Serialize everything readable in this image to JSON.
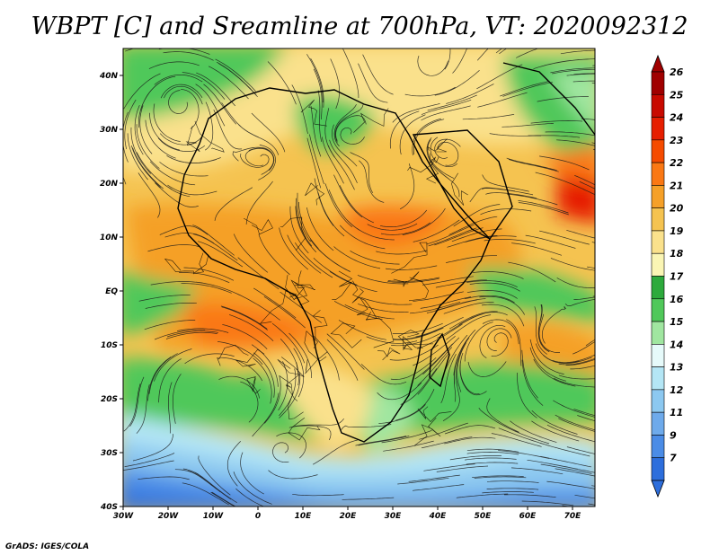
{
  "title": "WBPT [C] and Sreamline at 700hPa, VT: 2020092312",
  "credit": "GrADS: IGES/COLA",
  "map": {
    "lon_range": [
      -30,
      75
    ],
    "lat_range": [
      -40,
      45
    ],
    "lat_ticks": [
      {
        "value": 40,
        "label": "40N"
      },
      {
        "value": 30,
        "label": "30N"
      },
      {
        "value": 20,
        "label": "20N"
      },
      {
        "value": 10,
        "label": "10N"
      },
      {
        "value": 0,
        "label": "EQ"
      },
      {
        "value": -10,
        "label": "10S"
      },
      {
        "value": -20,
        "label": "20S"
      },
      {
        "value": -30,
        "label": "30S"
      },
      {
        "value": -40,
        "label": "40S"
      }
    ],
    "lon_ticks": [
      {
        "value": -30,
        "label": "30W"
      },
      {
        "value": -20,
        "label": "20W"
      },
      {
        "value": -10,
        "label": "10W"
      },
      {
        "value": 0,
        "label": "0"
      },
      {
        "value": 10,
        "label": "10E"
      },
      {
        "value": 20,
        "label": "20E"
      },
      {
        "value": 30,
        "label": "30E"
      },
      {
        "value": 40,
        "label": "40E"
      },
      {
        "value": 50,
        "label": "50E"
      },
      {
        "value": 60,
        "label": "60E"
      },
      {
        "value": 70,
        "label": "70E"
      }
    ]
  },
  "colorbar": {
    "levels": [
      {
        "label": "26",
        "color": "#a00000"
      },
      {
        "label": "25",
        "color": "#c80a00"
      },
      {
        "label": "24",
        "color": "#e61e00"
      },
      {
        "label": "23",
        "color": "#f54b00"
      },
      {
        "label": "22",
        "color": "#fa7814"
      },
      {
        "label": "21",
        "color": "#f5a028"
      },
      {
        "label": "20",
        "color": "#f5c350"
      },
      {
        "label": "19",
        "color": "#fae18c"
      },
      {
        "label": "18",
        "color": "#faf5b4"
      },
      {
        "label": "17",
        "color": "#2daa3c"
      },
      {
        "label": "16",
        "color": "#50c85a"
      },
      {
        "label": "15",
        "color": "#a0e6a0"
      },
      {
        "label": "14",
        "color": "#e6fafa"
      },
      {
        "label": "13",
        "color": "#b4e6f5"
      },
      {
        "label": "12",
        "color": "#8cc8f0"
      },
      {
        "label": "11",
        "color": "#6eaaeb"
      },
      {
        "label": "9",
        "color": "#4b8ce6"
      },
      {
        "label": "7",
        "color": "#2d6edc"
      }
    ],
    "bottom_color": "#2d6edc"
  }
}
